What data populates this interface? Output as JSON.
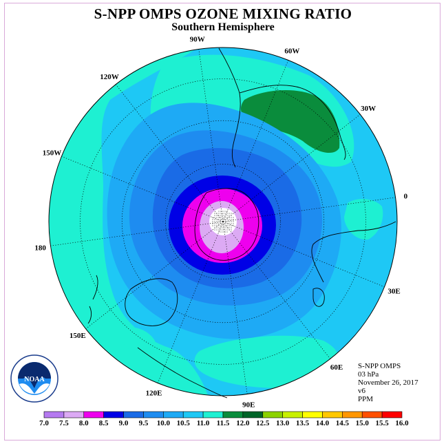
{
  "title": "S-NPP OMPS OZONE MIXING RATIO",
  "subtitle": "Southern Hemisphere",
  "longitudes": [
    {
      "label": "90W",
      "lon": -90
    },
    {
      "label": "60W",
      "lon": -60
    },
    {
      "label": "30W",
      "lon": -30
    },
    {
      "label": "0",
      "lon": 0
    },
    {
      "label": "30E",
      "lon": 30
    },
    {
      "label": "60E",
      "lon": 60
    },
    {
      "label": "90E",
      "lon": 90
    },
    {
      "label": "120E",
      "lon": 120
    },
    {
      "label": "150E",
      "lon": 150
    },
    {
      "label": "180",
      "lon": 180
    },
    {
      "label": "150W",
      "lon": -150
    },
    {
      "label": "120W",
      "lon": -120
    }
  ],
  "info": {
    "instrument": "S-NPP OMPS",
    "pressure": "03 hPa",
    "date": "November 26, 2017",
    "version": "v6",
    "units": "PPM"
  },
  "colorbar": {
    "ticks": [
      "7.0",
      "7.5",
      "8.0",
      "8.5",
      "9.0",
      "9.5",
      "10.0",
      "10.5",
      "11.0",
      "11.5",
      "12.0",
      "12.5",
      "13.0",
      "13.5",
      "14.0",
      "14.5",
      "15.0",
      "15.5",
      "16.0"
    ],
    "colors": [
      "#b57af0",
      "#dcaaf4",
      "#ee00ee",
      "#0000e6",
      "#1a6be6",
      "#1e8cf0",
      "#1eaaf5",
      "#1ec8f5",
      "#1ef0d2",
      "#0a8c3c",
      "#006428",
      "#8cd200",
      "#c8f000",
      "#ffff00",
      "#ffc800",
      "#ff9600",
      "#ff5000",
      "#ff0000",
      "#8c503c"
    ]
  },
  "logo": {
    "text": "NOAA"
  },
  "colors": {
    "frame": "#d9a9d9",
    "coast": "#000000"
  }
}
